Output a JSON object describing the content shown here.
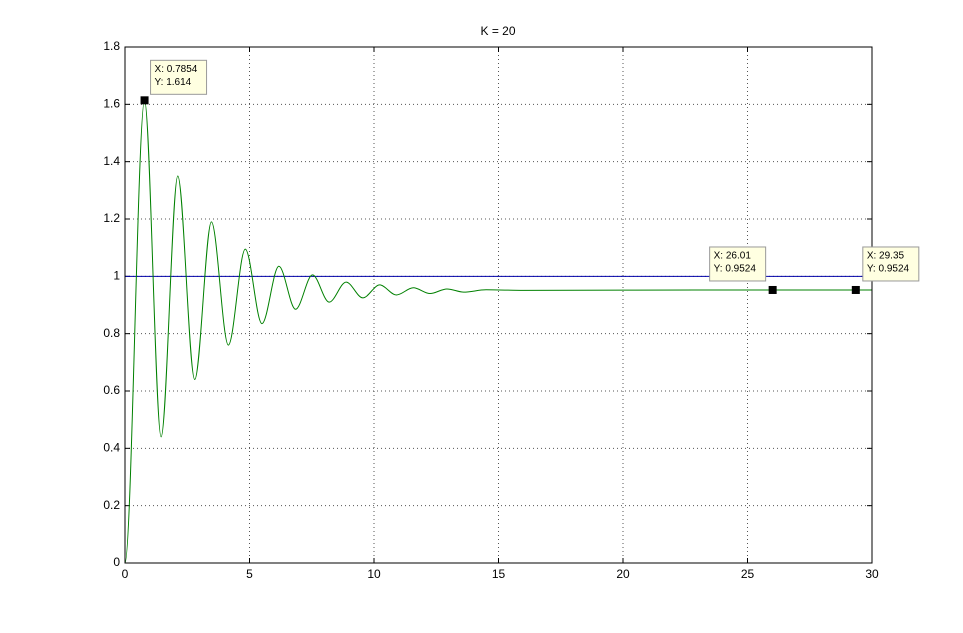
{
  "chart_data": {
    "type": "line",
    "title": "K = 20",
    "series": [
      {
        "color": "#0000a8",
        "x": [
          0,
          30
        ],
        "values": [
          1,
          1
        ]
      },
      {
        "color": "#008000",
        "x": [
          0,
          0.7854,
          1.45,
          2.12,
          2.8,
          3.47,
          4.15,
          4.83,
          5.5,
          6.18,
          6.85,
          7.53,
          8.2,
          8.88,
          9.55,
          10.23,
          10.9,
          11.58,
          12.25,
          12.93,
          13.6,
          14.5,
          16,
          20,
          26.01,
          29.35,
          30
        ],
        "values": [
          0,
          1.614,
          0.44,
          1.35,
          0.64,
          1.19,
          0.76,
          1.095,
          0.835,
          1.035,
          0.885,
          1.005,
          0.91,
          0.98,
          0.925,
          0.97,
          0.935,
          0.96,
          0.94,
          0.956,
          0.945,
          0.953,
          0.951,
          0.952,
          0.9524,
          0.9524,
          0.9524
        ]
      }
    ],
    "xlim": [
      0,
      30
    ],
    "xticks": [
      0,
      5,
      10,
      15,
      20,
      25,
      30
    ],
    "ylim": [
      0,
      1.8
    ],
    "yticks": [
      0,
      0.2,
      0.4,
      0.6,
      0.8,
      1,
      1.2,
      1.4,
      1.6,
      1.8
    ],
    "grid": true,
    "annotations": [
      {
        "x": 0.7854,
        "y": 1.614,
        "text": [
          "X: 0.7854",
          "Y: 1.614"
        ]
      },
      {
        "x": 26.01,
        "y": 0.9524,
        "text": [
          "X: 26.01",
          "Y: 0.9524"
        ]
      },
      {
        "x": 29.35,
        "y": 0.9524,
        "text": [
          "X: 29.35",
          "Y: 0.9524"
        ]
      }
    ]
  }
}
